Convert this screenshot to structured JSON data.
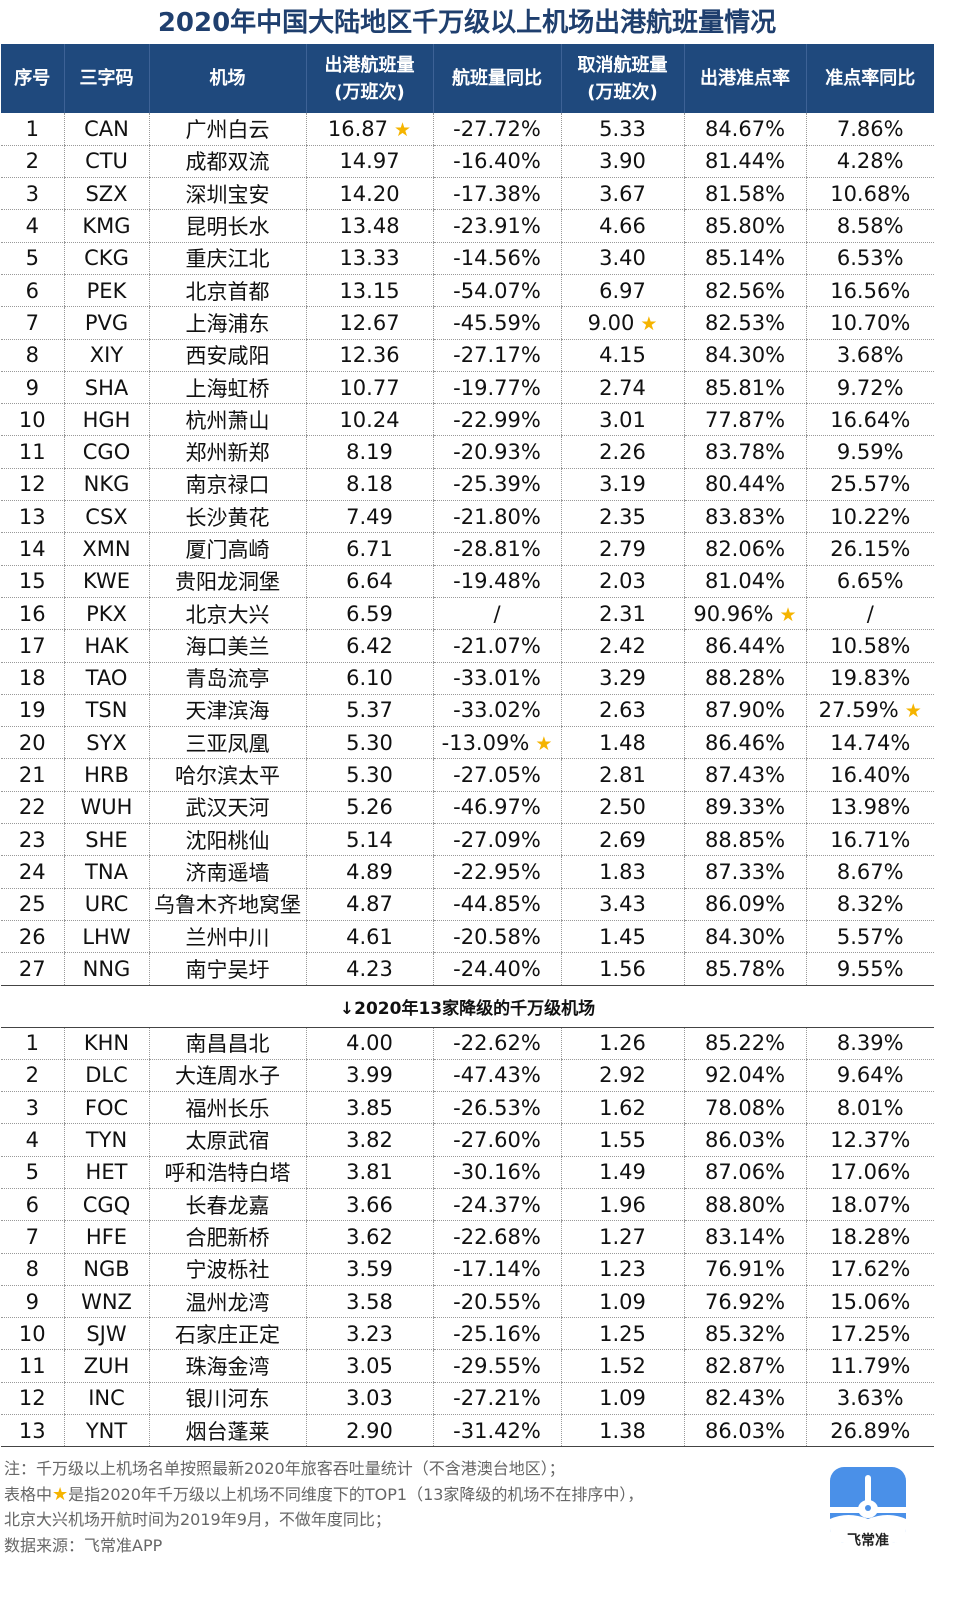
{
  "title": "2020年中国大陆地区千万级以上机场出港航班量情况",
  "headers": [
    "序号",
    "三字码",
    "机场",
    "出港航班量\n(万班次)",
    "航班量同比",
    "取消航班量\n(万班次)",
    "出港准点率",
    "准点率同比"
  ],
  "star_color": "#f5b400",
  "header_color": "#1f497d",
  "rows": [
    {
      "c": [
        "1",
        "CAN",
        "广州白云",
        "16.87",
        "-27.72%",
        "5.33",
        "84.67%",
        "7.86%"
      ],
      "stars": [
        3
      ]
    },
    {
      "c": [
        "2",
        "CTU",
        "成都双流",
        "14.97",
        "-16.40%",
        "3.90",
        "81.44%",
        "4.28%"
      ]
    },
    {
      "c": [
        "3",
        "SZX",
        "深圳宝安",
        "14.20",
        "-17.38%",
        "3.67",
        "81.58%",
        "10.68%"
      ]
    },
    {
      "c": [
        "4",
        "KMG",
        "昆明长水",
        "13.48",
        "-23.91%",
        "4.66",
        "85.80%",
        "8.58%"
      ]
    },
    {
      "c": [
        "5",
        "CKG",
        "重庆江北",
        "13.33",
        "-14.56%",
        "3.40",
        "85.14%",
        "6.53%"
      ]
    },
    {
      "c": [
        "6",
        "PEK",
        "北京首都",
        "13.15",
        "-54.07%",
        "6.97",
        "82.56%",
        "16.56%"
      ]
    },
    {
      "c": [
        "7",
        "PVG",
        "上海浦东",
        "12.67",
        "-45.59%",
        "9.00",
        "82.53%",
        "10.70%"
      ],
      "stars": [
        5
      ]
    },
    {
      "c": [
        "8",
        "XIY",
        "西安咸阳",
        "12.36",
        "-27.17%",
        "4.15",
        "84.30%",
        "3.68%"
      ]
    },
    {
      "c": [
        "9",
        "SHA",
        "上海虹桥",
        "10.77",
        "-19.77%",
        "2.74",
        "85.81%",
        "9.72%"
      ]
    },
    {
      "c": [
        "10",
        "HGH",
        "杭州萧山",
        "10.24",
        "-22.99%",
        "3.01",
        "77.87%",
        "16.64%"
      ]
    },
    {
      "c": [
        "11",
        "CGO",
        "郑州新郑",
        "8.19",
        "-20.93%",
        "2.26",
        "83.78%",
        "9.59%"
      ]
    },
    {
      "c": [
        "12",
        "NKG",
        "南京禄口",
        "8.18",
        "-25.39%",
        "3.19",
        "80.44%",
        "25.57%"
      ]
    },
    {
      "c": [
        "13",
        "CSX",
        "长沙黄花",
        "7.49",
        "-21.80%",
        "2.35",
        "83.83%",
        "10.22%"
      ]
    },
    {
      "c": [
        "14",
        "XMN",
        "厦门高崎",
        "6.71",
        "-28.81%",
        "2.79",
        "82.06%",
        "26.15%"
      ]
    },
    {
      "c": [
        "15",
        "KWE",
        "贵阳龙洞堡",
        "6.64",
        "-19.48%",
        "2.03",
        "81.04%",
        "6.65%"
      ]
    },
    {
      "c": [
        "16",
        "PKX",
        "北京大兴",
        "6.59",
        "/",
        "2.31",
        "90.96%",
        "/"
      ],
      "stars": [
        6
      ]
    },
    {
      "c": [
        "17",
        "HAK",
        "海口美兰",
        "6.42",
        "-21.07%",
        "2.42",
        "86.44%",
        "10.58%"
      ]
    },
    {
      "c": [
        "18",
        "TAO",
        "青岛流亭",
        "6.10",
        "-33.01%",
        "3.29",
        "88.28%",
        "19.83%"
      ]
    },
    {
      "c": [
        "19",
        "TSN",
        "天津滨海",
        "5.37",
        "-33.02%",
        "2.63",
        "87.90%",
        "27.59%"
      ],
      "stars": [
        7
      ]
    },
    {
      "c": [
        "20",
        "SYX",
        "三亚凤凰",
        "5.30",
        "-13.09%",
        "1.48",
        "86.46%",
        "14.74%"
      ],
      "stars": [
        4
      ]
    },
    {
      "c": [
        "21",
        "HRB",
        "哈尔滨太平",
        "5.30",
        "-27.05%",
        "2.81",
        "87.43%",
        "16.40%"
      ]
    },
    {
      "c": [
        "22",
        "WUH",
        "武汉天河",
        "5.26",
        "-46.97%",
        "2.50",
        "89.33%",
        "13.98%"
      ]
    },
    {
      "c": [
        "23",
        "SHE",
        "沈阳桃仙",
        "5.14",
        "-27.09%",
        "2.69",
        "88.85%",
        "16.71%"
      ]
    },
    {
      "c": [
        "24",
        "TNA",
        "济南遥墙",
        "4.89",
        "-22.95%",
        "1.83",
        "87.33%",
        "8.67%"
      ]
    },
    {
      "c": [
        "25",
        "URC",
        "乌鲁木齐地窝堡",
        "4.87",
        "-44.85%",
        "3.43",
        "86.09%",
        "8.32%"
      ]
    },
    {
      "c": [
        "26",
        "LHW",
        "兰州中川",
        "4.61",
        "-20.58%",
        "1.45",
        "84.30%",
        "5.57%"
      ]
    },
    {
      "c": [
        "27",
        "NNG",
        "南宁吴圩",
        "4.23",
        "-24.40%",
        "1.56",
        "85.78%",
        "9.55%"
      ]
    }
  ],
  "section_label": "↓2020年13家降级的千万级机场",
  "rows2": [
    {
      "c": [
        "1",
        "KHN",
        "南昌昌北",
        "4.00",
        "-22.62%",
        "1.26",
        "85.22%",
        "8.39%"
      ]
    },
    {
      "c": [
        "2",
        "DLC",
        "大连周水子",
        "3.99",
        "-47.43%",
        "2.92",
        "92.04%",
        "9.64%"
      ]
    },
    {
      "c": [
        "3",
        "FOC",
        "福州长乐",
        "3.85",
        "-26.53%",
        "1.62",
        "78.08%",
        "8.01%"
      ]
    },
    {
      "c": [
        "4",
        "TYN",
        "太原武宿",
        "3.82",
        "-27.60%",
        "1.55",
        "86.03%",
        "12.37%"
      ]
    },
    {
      "c": [
        "5",
        "HET",
        "呼和浩特白塔",
        "3.81",
        "-30.16%",
        "1.49",
        "87.06%",
        "17.06%"
      ]
    },
    {
      "c": [
        "6",
        "CGQ",
        "长春龙嘉",
        "3.66",
        "-24.37%",
        "1.96",
        "88.80%",
        "18.07%"
      ]
    },
    {
      "c": [
        "7",
        "HFE",
        "合肥新桥",
        "3.62",
        "-22.68%",
        "1.27",
        "83.14%",
        "18.28%"
      ]
    },
    {
      "c": [
        "8",
        "NGB",
        "宁波栎社",
        "3.59",
        "-17.14%",
        "1.23",
        "76.91%",
        "17.62%"
      ]
    },
    {
      "c": [
        "9",
        "WNZ",
        "温州龙湾",
        "3.58",
        "-20.55%",
        "1.09",
        "76.92%",
        "15.06%"
      ]
    },
    {
      "c": [
        "10",
        "SJW",
        "石家庄正定",
        "3.23",
        "-25.16%",
        "1.25",
        "85.32%",
        "17.25%"
      ]
    },
    {
      "c": [
        "11",
        "ZUH",
        "珠海金湾",
        "3.05",
        "-29.55%",
        "1.52",
        "82.87%",
        "11.79%"
      ]
    },
    {
      "c": [
        "12",
        "INC",
        "银川河东",
        "3.03",
        "-27.21%",
        "1.09",
        "82.43%",
        "3.63%"
      ]
    },
    {
      "c": [
        "13",
        "YNT",
        "烟台蓬莱",
        "2.90",
        "-31.42%",
        "1.38",
        "86.03%",
        "26.89%"
      ]
    }
  ],
  "notes": {
    "line1": "注：千万级以上机场名单按照最新2020年旅客吞吐量统计（不含港澳台地区）；",
    "line2_pre": "表格中",
    "line2_post": "是指2020年千万级以上机场不同维度下的TOP1（13家降级的机场不在排序中），",
    "line3": "北京大兴机场开航时间为2019年9月，不做年度同比；",
    "line4": "数据来源：飞常准APP"
  },
  "logo": {
    "text": "飞常准",
    "icon": "airplane-logo-icon",
    "color": "#4a90e8"
  }
}
